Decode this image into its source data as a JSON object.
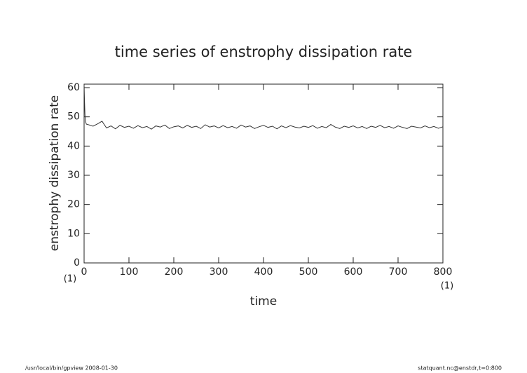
{
  "chart_data": {
    "type": "line",
    "title": "time series of enstrophy dissipation rate",
    "x_label": "time",
    "y_label": "enstrophy dissipation rate",
    "annotations": [
      "(1)",
      "(1)"
    ],
    "color": "#333333",
    "x": [
      0,
      1,
      2,
      3,
      5,
      10,
      20,
      30,
      40,
      50,
      60,
      70,
      80,
      90,
      100,
      110,
      120,
      130,
      140,
      150,
      160,
      170,
      180,
      190,
      200,
      210,
      220,
      230,
      240,
      250,
      260,
      270,
      280,
      290,
      300,
      310,
      320,
      330,
      340,
      350,
      360,
      370,
      380,
      390,
      400,
      410,
      420,
      430,
      440,
      450,
      460,
      470,
      480,
      490,
      500,
      510,
      520,
      530,
      540,
      550,
      560,
      570,
      580,
      590,
      600,
      610,
      620,
      630,
      640,
      650,
      660,
      670,
      680,
      690,
      700,
      710,
      720,
      730,
      740,
      750,
      760,
      770,
      780,
      790,
      800
    ],
    "values": [
      61,
      55,
      50.5,
      48.5,
      47.5,
      47.3,
      46.8,
      47.6,
      48.5,
      46.2,
      46.9,
      45.9,
      47.1,
      46.4,
      46.8,
      46.1,
      47.0,
      46.3,
      46.7,
      45.8,
      46.9,
      46.5,
      47.2,
      46.0,
      46.6,
      46.9,
      46.2,
      47.1,
      46.4,
      46.8,
      46.0,
      47.3,
      46.5,
      46.9,
      46.2,
      47.0,
      46.3,
      46.7,
      46.1,
      47.2,
      46.5,
      46.9,
      46.0,
      46.6,
      47.1,
      46.4,
      46.8,
      45.9,
      46.9,
      46.3,
      47.0,
      46.5,
      46.2,
      46.8,
      46.4,
      47.0,
      46.1,
      46.7,
      46.3,
      47.4,
      46.5,
      46.0,
      46.8,
      46.4,
      46.9,
      46.2,
      46.7,
      46.0,
      46.8,
      46.4,
      47.1,
      46.3,
      46.7,
      46.1,
      46.9,
      46.4,
      46.0,
      46.8,
      46.5,
      46.2,
      46.9,
      46.3,
      46.7,
      46.1,
      46.6
    ],
    "xlim": [
      0,
      800
    ],
    "xticks": [
      0,
      100,
      200,
      300,
      400,
      500,
      600,
      700,
      800
    ],
    "ylim": [
      0,
      61.2
    ],
    "yticks": [
      0,
      10,
      20,
      30,
      40,
      50,
      60
    ]
  },
  "footer": {
    "left": "/usr/local/bin/gpview   2008-01-30",
    "right": "statquant.nc@enstdr,t=0:800"
  }
}
